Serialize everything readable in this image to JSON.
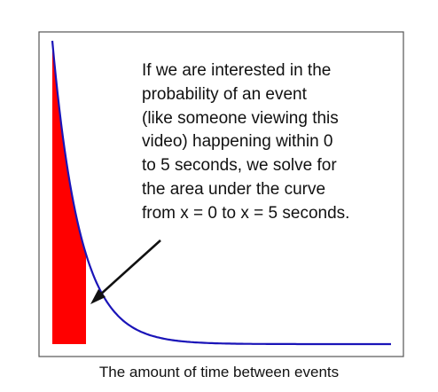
{
  "chart_data": {
    "type": "area",
    "curve": "exponential decay",
    "x_shaded": [
      0,
      5
    ],
    "xlabel": "The amount of time between events",
    "annotation_lines": [
      "If we are interested in the",
      "probability of an event",
      "(like someone viewing this",
      "video) happening within 0",
      "to 5 seconds, we solve for",
      "the area under the curve",
      "from x = 0 to x = 5 seconds."
    ],
    "colors": {
      "curve": "#1a14b8",
      "shaded_area": "#ff0000",
      "arrow": "#111111",
      "frame": "#555555"
    }
  }
}
